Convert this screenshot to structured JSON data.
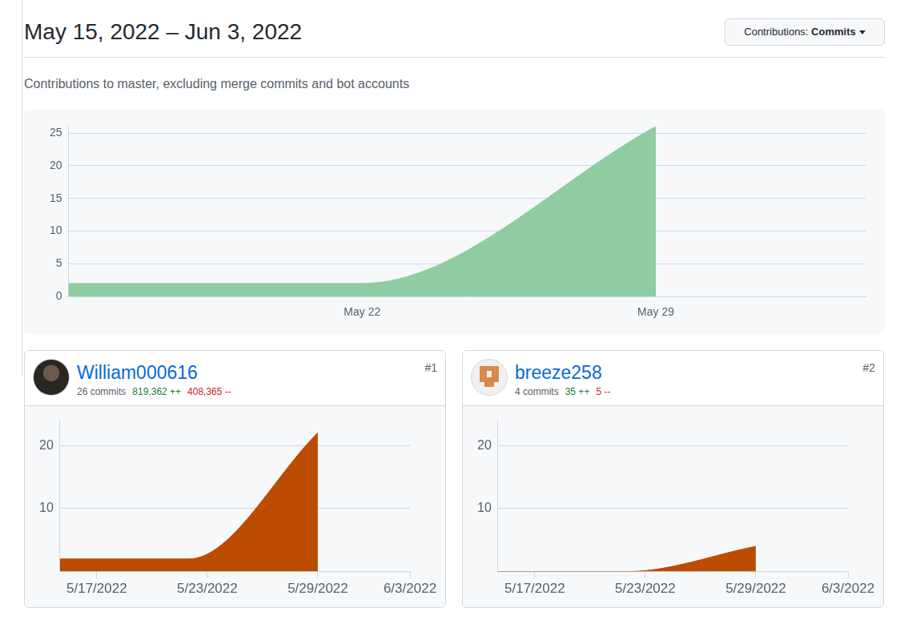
{
  "header": {
    "title": "May 15, 2022 – Jun 3, 2022",
    "menu": {
      "label": "Contributions:",
      "value": "Commits"
    },
    "subtitle": "Contributions to master, excluding merge commits and bot accounts"
  },
  "chart_data": {
    "type": "area",
    "categories": [
      null,
      null,
      null,
      null,
      null,
      null,
      null,
      "May 22",
      null,
      null,
      null,
      null,
      null,
      null,
      "May 29",
      null,
      null,
      null,
      null,
      null
    ],
    "values": [
      2,
      null,
      null,
      null,
      null,
      null,
      null,
      2,
      null,
      null,
      null,
      null,
      null,
      null,
      26,
      null,
      null,
      null,
      null,
      null
    ],
    "color": "#8fcca0",
    "ylim": [
      0,
      26
    ],
    "yticks": [
      0,
      5,
      10,
      15,
      20,
      25
    ],
    "grid": true
  },
  "contributors": [
    {
      "rank": "#1",
      "name": "William000616",
      "commits": "26 commits",
      "additions": "819,362 ++",
      "deletions": "408,365 --",
      "chart_data": {
        "type": "area",
        "categories": [
          null,
          null,
          "5/17/2022",
          null,
          null,
          null,
          null,
          null,
          "5/23/2022",
          null,
          null,
          null,
          null,
          null,
          "5/29/2022",
          null,
          null,
          null,
          null,
          "6/3/2022"
        ],
        "values": [
          2,
          null,
          null,
          null,
          null,
          null,
          null,
          2,
          null,
          null,
          null,
          null,
          null,
          null,
          22,
          null,
          null,
          null,
          null,
          null
        ],
        "color": "#bc4c00",
        "ylim": [
          0,
          24
        ],
        "yticks": [
          10,
          20
        ],
        "grid": true
      }
    },
    {
      "rank": "#2",
      "name": "breeze258",
      "commits": "4 commits",
      "additions": "35 ++",
      "deletions": "5 --",
      "chart_data": {
        "type": "area",
        "categories": [
          null,
          null,
          "5/17/2022",
          null,
          null,
          null,
          null,
          null,
          "5/23/2022",
          null,
          null,
          null,
          null,
          null,
          "5/29/2022",
          null,
          null,
          null,
          null,
          "6/3/2022"
        ],
        "values": [
          0,
          null,
          null,
          null,
          null,
          null,
          null,
          0,
          null,
          null,
          null,
          null,
          null,
          null,
          4,
          null,
          null,
          null,
          null,
          null
        ],
        "color": "#bc4c00",
        "ylim": [
          0,
          24
        ],
        "yticks": [
          10,
          20
        ],
        "grid": true
      }
    }
  ]
}
